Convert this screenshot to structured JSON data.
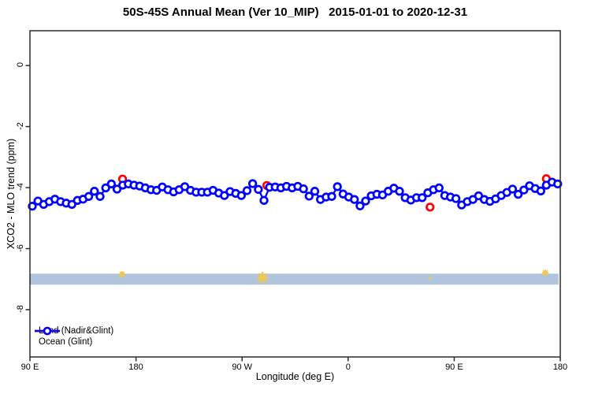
{
  "title": "50S-45S Annual Mean (Ver 10_MIP)   2015-01-01 to 2020-12-31",
  "chart_data": {
    "type": "line",
    "title": "50S-45S Annual Mean (Ver 10_MIP)   2015-01-01 to 2020-12-31",
    "xlabel": "Longitude (deg E)",
    "ylabel": "XCO2 - MLO trend (ppm)",
    "x_axis": {
      "note": "axis position in degrees eastward starting at 90E and wrapping past dateline",
      "tick_positions_deg": [
        90,
        180,
        270,
        360,
        450,
        540
      ],
      "tick_labels": [
        "90 E",
        "180",
        "90 W",
        "0",
        "90 E",
        "180"
      ],
      "range_deg": [
        90,
        540
      ]
    },
    "y_axis": {
      "tick_values": [
        0,
        -2,
        -4,
        -6,
        -8
      ],
      "tick_labels": [
        "0",
        "-2",
        "-4",
        "-6",
        "-8"
      ],
      "range": [
        1.14,
        -9.55
      ],
      "grid": false
    },
    "legend_position": "bottom-left",
    "series": [
      {
        "name": "Ocean (Glint)",
        "color": "#0000ff",
        "marker": "open-circle",
        "line": true,
        "x_deg": [
          92.0,
          96.8,
          101.6,
          106.4,
          111.2,
          116.0,
          120.8,
          125.6,
          130.3,
          135.1,
          139.9,
          144.7,
          149.5,
          154.3,
          159.1,
          163.9,
          168.7,
          173.5,
          178.3,
          183.1,
          187.9,
          192.7,
          197.5,
          202.3,
          207.1,
          211.9,
          216.6,
          221.4,
          226.2,
          231.0,
          235.8,
          240.6,
          245.4,
          250.2,
          255.0,
          259.8,
          264.6,
          269.4,
          274.2,
          279.0,
          283.8,
          288.6,
          293.3,
          298.1,
          302.9,
          307.7,
          312.5,
          317.3,
          322.1,
          326.9,
          331.7,
          336.5,
          341.3,
          346.1,
          350.9,
          355.7,
          360.5,
          365.3,
          370.1,
          374.8,
          379.6,
          384.4,
          389.2,
          394.0,
          398.8,
          403.6,
          408.4,
          413.2,
          418.0,
          422.8,
          427.6,
          432.4,
          437.2,
          442.0,
          446.8,
          451.5,
          456.3,
          461.1,
          465.9,
          470.7,
          475.5,
          480.3,
          485.1,
          489.9,
          494.7,
          499.5,
          504.3,
          509.1,
          513.9,
          518.7,
          523.5,
          528.2,
          533.0,
          537.8
        ],
        "y": [
          -4.61,
          -4.44,
          -4.55,
          -4.46,
          -4.38,
          -4.46,
          -4.51,
          -4.55,
          -4.42,
          -4.38,
          -4.29,
          -4.12,
          -4.29,
          -4.01,
          -3.88,
          -4.05,
          -3.92,
          -3.88,
          -3.92,
          -3.95,
          -4.01,
          -4.07,
          -4.09,
          -3.98,
          -4.07,
          -4.14,
          -4.07,
          -3.97,
          -4.09,
          -4.15,
          -4.15,
          -4.15,
          -4.09,
          -4.18,
          -4.26,
          -4.13,
          -4.19,
          -4.26,
          -4.1,
          -3.87,
          -4.06,
          -4.42,
          -3.99,
          -3.98,
          -4.01,
          -3.96,
          -4.01,
          -3.96,
          -4.04,
          -4.28,
          -4.12,
          -4.39,
          -4.31,
          -4.29,
          -3.97,
          -4.21,
          -4.31,
          -4.39,
          -4.6,
          -4.44,
          -4.27,
          -4.22,
          -4.24,
          -4.12,
          -4.02,
          -4.12,
          -4.33,
          -4.41,
          -4.33,
          -4.33,
          -4.17,
          -4.07,
          -4.01,
          -4.26,
          -4.31,
          -4.36,
          -4.57,
          -4.46,
          -4.39,
          -4.27,
          -4.39,
          -4.45,
          -4.37,
          -4.26,
          -4.16,
          -4.05,
          -4.22,
          -4.08,
          -3.94,
          -4.03,
          -4.11,
          -3.92,
          -3.82,
          -3.88
        ]
      },
      {
        "name": "Land (Nadir&Glint)",
        "color": "#ff0000",
        "marker": "open-circle",
        "line": false,
        "x_deg": [
          168.6,
          291.0,
          429.5,
          528.2
        ],
        "y": [
          -3.72,
          -3.93,
          -4.64,
          -3.71
        ]
      }
    ],
    "band": {
      "color": "#b0c4de",
      "x_deg": [
        90,
        538.6
      ],
      "y_top": -6.82,
      "y_bottom": -7.18
    },
    "annotations": [
      {
        "shape": "asterisk",
        "color": "#f0c84f",
        "x_deg": 168.2,
        "y": -6.84,
        "size": 7
      },
      {
        "shape": "asterisk",
        "color": "#f0c84f",
        "x_deg": 287.3,
        "y": -6.95,
        "size": 13
      },
      {
        "shape": "dot",
        "color": "#f0c84f",
        "x_deg": 429.0,
        "y": -6.96,
        "size": 3
      },
      {
        "shape": "asterisk",
        "color": "#f0c84f",
        "x_deg": 527.3,
        "y": -6.79,
        "size": 7
      }
    ],
    "legend": {
      "items": [
        {
          "label": "Land (Nadir&Glint)",
          "color": "#ff0000"
        },
        {
          "label": "Ocean (Glint)",
          "color": "#0000ff"
        }
      ]
    }
  },
  "colors": {
    "ocean": "#0000ff",
    "land": "#ff0000",
    "band": "#b0c4de",
    "gold_marker": "#f0c84f",
    "frame": "#2b2b2b"
  }
}
